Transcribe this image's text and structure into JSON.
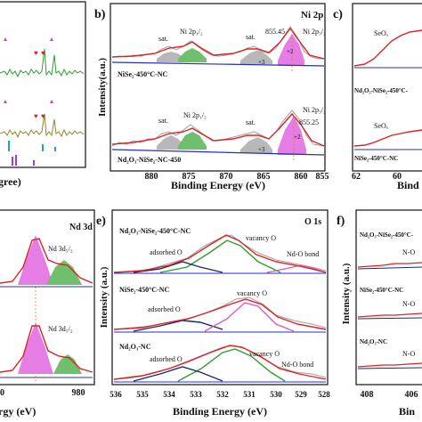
{
  "chart_data": [
    {
      "panel": "a",
      "type": "line",
      "x_ticks": [
        "0",
        "60",
        "70",
        "80"
      ],
      "x_tick_visible_partial": [
        "0"
      ],
      "xlabel_fragment": "gree)",
      "ylim": [
        0,
        1
      ],
      "series": [
        {
          "color": "#2e9e2e",
          "values": [
            0.78,
            0.8,
            0.77,
            0.82,
            0.79,
            0.78,
            0.83,
            0.76,
            0.8,
            0.79,
            0.81,
            0.78,
            0.8,
            0.77,
            0.79,
            0.82,
            0.78,
            0.8,
            0.79,
            0.81,
            0.78,
            0.8,
            0.79
          ]
        },
        {
          "color": "#8b8b2a",
          "values": [
            0.42,
            0.44,
            0.41,
            0.45,
            0.43,
            0.42,
            0.46,
            0.41,
            0.44,
            0.43,
            0.45,
            0.42,
            0.44,
            0.41,
            0.43,
            0.46,
            0.42,
            0.44,
            0.43,
            0.45,
            0.42,
            0.44,
            0.43
          ]
        }
      ],
      "markers": [
        "heart",
        "triangle"
      ]
    },
    {
      "panel": "b",
      "label": "b)",
      "type": "line",
      "title": "Ni 2p",
      "xlabel": "Binding Energy (eV)",
      "ylabel": "Intensity(a.u.)",
      "x_ticks": [
        "880",
        "875",
        "870",
        "865",
        "860",
        "855"
      ],
      "xlim": [
        884,
        852
      ],
      "upper_sample": "NiSe2-450°C-NC",
      "lower_sample": "Nd2O3-NiSe2-NC-450",
      "annotations": [
        "sat.",
        "Ni 2p1/2",
        "sat.",
        "+3",
        "855.45",
        "Ni 2p3/2",
        "+2",
        "sat.",
        "Ni 2p1/2",
        "sat.",
        "+3",
        "855.25",
        "Ni 2p3/2",
        "+2"
      ],
      "highlight_color": "#e67e22"
    },
    {
      "panel": "c",
      "label": "c)",
      "type": "line",
      "xlabel_fragment": "Bind",
      "x_ticks": [
        "62",
        "60"
      ],
      "upper_sample": "Nd2O3-NiSe2-450°C-",
      "lower_sample": "NiSe2-450°C-NC",
      "annotations": [
        "SeOx",
        "SeOx"
      ]
    },
    {
      "panel": "d",
      "type": "line",
      "title": "Nd 3d",
      "xlabel_fragment": "rgy (eV)",
      "x_ticks": [
        "980"
      ],
      "annotations": [
        "Nd 3d5/2",
        "Nd 3d5/2"
      ]
    },
    {
      "panel": "e",
      "label": "e)",
      "type": "line",
      "title": "O 1s",
      "xlabel": "Binding Energy (eV)",
      "ylabel": "Intensity (a.u.)",
      "x_ticks": [
        "536",
        "535",
        "534",
        "533",
        "532",
        "531",
        "530",
        "529",
        "528"
      ],
      "xlim": [
        536,
        528
      ],
      "samples": [
        "Nd2O3-NiSe2-450°C-NC",
        "NiSe2-450°C-NC",
        "Nd2O3-NC"
      ],
      "annotations": [
        "adsorbed O",
        "vacancy O",
        "Nd-O bond",
        "adsorbed O",
        "vacancy O",
        "adsorbed O",
        "vacancy O",
        "Nd-O bond"
      ]
    },
    {
      "panel": "f",
      "label": "f)",
      "type": "line",
      "ylabel": "Intensity (a.u.)",
      "xlabel_fragment": "Bin",
      "x_ticks": [
        "408",
        "406"
      ],
      "samples": [
        "Nd2O3-NiSe2-450°C-",
        "NiSe2-450°C-NC",
        "Nd2O3-NC"
      ],
      "annotations": [
        "N-O",
        "N-O",
        "N-O"
      ]
    }
  ]
}
